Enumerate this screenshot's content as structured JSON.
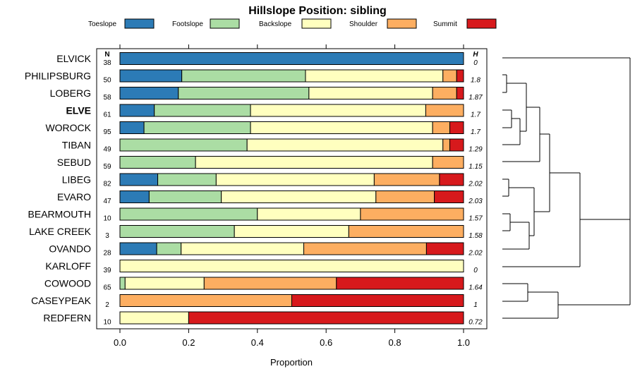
{
  "chart_data": {
    "type": "bar",
    "orientation": "horizontal",
    "stacked": true,
    "title": "Hillslope Position: sibling",
    "xlabel": "Proportion",
    "xlim": [
      0,
      1
    ],
    "xticks": [
      "0.0",
      "0.2",
      "0.4",
      "0.6",
      "0.8",
      "1.0"
    ],
    "xtick_values": [
      0,
      0.2,
      0.4,
      0.6,
      0.8,
      1.0
    ],
    "legend_position": "top",
    "n_header": "N",
    "h_header": "H",
    "series": [
      {
        "name": "Toeslope",
        "color": "#2C7BB6"
      },
      {
        "name": "Footslope",
        "color": "#ABDDA4"
      },
      {
        "name": "Backslope",
        "color": "#FFFFBF"
      },
      {
        "name": "Shoulder",
        "color": "#FDAE61"
      },
      {
        "name": "Summit",
        "color": "#D7191C"
      }
    ],
    "categories": [
      {
        "label": "ELVICK",
        "bold": false,
        "n": "38",
        "h": "0",
        "values": [
          1.0,
          0,
          0,
          0,
          0
        ]
      },
      {
        "label": "PHILIPSBURG",
        "bold": false,
        "n": "50",
        "h": "1.8",
        "values": [
          0.18,
          0.36,
          0.4,
          0.04,
          0.02
        ]
      },
      {
        "name_note": "",
        "label": "LOBERG",
        "bold": false,
        "n": "58",
        "h": "1.87",
        "values": [
          0.17,
          0.38,
          0.36,
          0.07,
          0.02
        ]
      },
      {
        "label": "ELVE",
        "bold": true,
        "n": "61",
        "h": "1.7",
        "values": [
          0.1,
          0.28,
          0.51,
          0.11,
          0
        ]
      },
      {
        "label": "WOROCK",
        "bold": false,
        "n": "95",
        "h": "1.7",
        "values": [
          0.07,
          0.31,
          0.53,
          0.05,
          0.04
        ]
      },
      {
        "label": "TIBAN",
        "bold": false,
        "n": "49",
        "h": "1.29",
        "values": [
          0,
          0.37,
          0.57,
          0.02,
          0.04
        ]
      },
      {
        "label": "SEBUD",
        "bold": false,
        "n": "59",
        "h": "1.15",
        "values": [
          0,
          0.22,
          0.69,
          0.09,
          0
        ]
      },
      {
        "label": "LIBEG",
        "bold": false,
        "n": "82",
        "h": "2.02",
        "values": [
          0.11,
          0.17,
          0.46,
          0.19,
          0.07
        ]
      },
      {
        "label": "EVARO",
        "bold": false,
        "n": "47",
        "h": "2.03",
        "values": [
          0.085,
          0.21,
          0.45,
          0.17,
          0.085
        ]
      },
      {
        "label": "BEARMOUTH",
        "bold": false,
        "n": "10",
        "h": "1.57",
        "values": [
          0,
          0.4,
          0.3,
          0.3,
          0
        ]
      },
      {
        "label": "LAKE CREEK",
        "bold": false,
        "n": "3",
        "h": "1.58",
        "values": [
          0,
          0.333,
          0.333,
          0.334,
          0
        ]
      },
      {
        "label": "OVANDO",
        "bold": false,
        "n": "28",
        "h": "2.02",
        "values": [
          0.107,
          0.071,
          0.357,
          0.357,
          0.108
        ]
      },
      {
        "label": "KARLOFF",
        "bold": false,
        "n": "39",
        "h": "0",
        "values": [
          0,
          0,
          1.0,
          0,
          0
        ]
      },
      {
        "label": "COWOOD",
        "bold": false,
        "n": "65",
        "h": "1.64",
        "values": [
          0,
          0.015,
          0.23,
          0.385,
          0.37
        ]
      },
      {
        "label": "CASEYPEAK",
        "bold": false,
        "n": "2",
        "h": "1",
        "values": [
          0,
          0,
          0,
          0.5,
          0.5
        ]
      },
      {
        "label": "REDFERN",
        "bold": false,
        "n": "10",
        "h": "0.72",
        "values": [
          0,
          0,
          0.2,
          0,
          0.8
        ]
      }
    ]
  }
}
